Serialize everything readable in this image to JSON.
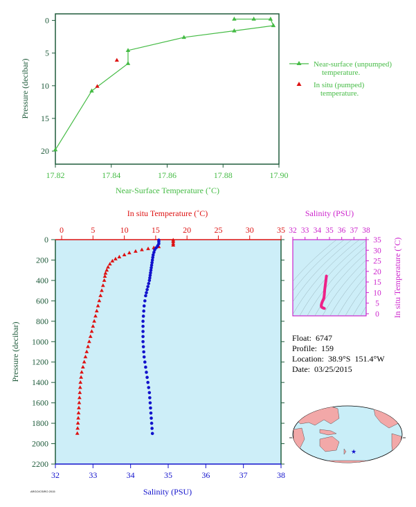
{
  "colors": {
    "green": "#44bb44",
    "red": "#dd1111",
    "blue": "#1111cc",
    "magenta": "#cc22cc",
    "pink": "#ee2288",
    "plot_bg": "#cdeef8",
    "dark_green": "#1e5a3a",
    "land": "#f2a8a8",
    "ocean": "#c9eef8"
  },
  "float_info": {
    "float_line": "Float:  6747",
    "profile_line": "Profile:  159",
    "location_line": "Location:  38.9°S  151.4°W",
    "date_line": "Date:  03/25/2015"
  },
  "credit": "ARGO/CSIRO 2015",
  "map": {
    "marker_icon": "star-icon"
  },
  "chart_data": [
    {
      "id": "near-surface",
      "type": "line",
      "xlabel": "Near-Surface Temperature (˚C)",
      "ylabel": "Pressure (decibar)",
      "xlim": [
        17.82,
        17.9
      ],
      "ylim": [
        22,
        -1
      ],
      "xticks": [
        17.82,
        17.84,
        17.86,
        17.88,
        17.9
      ],
      "xtick_labels": [
        "17.82",
        "17.84",
        "17.86",
        "17.88",
        "17.90"
      ],
      "yticks": [
        0,
        5,
        10,
        15,
        20
      ],
      "ytick_labels": [
        "0",
        "5",
        "10",
        "15",
        "20"
      ],
      "legend": [
        "Near-surface (unpumped)\ntemperature.",
        "In situ (pumped)\ntemperature."
      ],
      "legend_position": "right",
      "series": [
        {
          "name": "Near-surface (unpumped)\ntemperature.",
          "color": "#44bb44",
          "marker": "triangle",
          "points": [
            [
              17.884,
              -0.2
            ],
            [
              17.891,
              -0.2
            ],
            [
              17.897,
              -0.2
            ],
            [
              17.898,
              0.8
            ],
            [
              17.884,
              1.6
            ],
            [
              17.866,
              2.6
            ],
            [
              17.846,
              4.6
            ],
            [
              17.846,
              6.6
            ],
            [
              17.833,
              10.8
            ],
            [
              17.82,
              19.8
            ]
          ]
        },
        {
          "name": "In situ (pumped)\ntemperature.",
          "color": "#dd1111",
          "marker": "triangle",
          "points": [
            [
              17.842,
              6.1
            ],
            [
              17.835,
              10.1
            ]
          ]
        }
      ]
    },
    {
      "id": "profile",
      "type": "scatter",
      "top_xlabel": "In situ Temperature (˚C)",
      "bottom_xlabel": "Salinity (PSU)",
      "ylabel": "Pressure (decibar)",
      "temp_lim": [
        -1,
        35
      ],
      "temp_ticks": [
        0,
        5,
        10,
        15,
        20,
        25,
        30,
        35
      ],
      "temp_tick_labels": [
        "0",
        "5",
        "10",
        "15",
        "20",
        "25",
        "30",
        "35"
      ],
      "sal_lim": [
        32,
        38
      ],
      "sal_ticks": [
        32,
        33,
        34,
        35,
        36,
        37,
        38
      ],
      "sal_tick_labels": [
        "32",
        "33",
        "34",
        "35",
        "36",
        "37",
        "38"
      ],
      "ylim": [
        2200,
        0
      ],
      "yticks": [
        0,
        200,
        400,
        600,
        800,
        1000,
        1200,
        1400,
        1600,
        1800,
        2000,
        2200
      ],
      "ytick_labels": [
        "0",
        "200",
        "400",
        "600",
        "800",
        "1000",
        "1200",
        "1400",
        "1600",
        "1800",
        "2000",
        "2200"
      ],
      "temperature": {
        "color": "#dd1111",
        "marker": "triangle",
        "near_surface_line": [
          [
            14.8,
            0
          ],
          [
            17.8,
            0
          ],
          [
            17.8,
            60
          ]
        ],
        "points": [
          [
            17.8,
            5
          ],
          [
            17.8,
            20
          ],
          [
            17.8,
            40
          ],
          [
            17.8,
            55
          ],
          [
            15.5,
            70
          ],
          [
            14.7,
            80
          ],
          [
            13.8,
            90
          ],
          [
            12.8,
            100
          ],
          [
            11.8,
            115
          ],
          [
            10.8,
            130
          ],
          [
            10.0,
            150
          ],
          [
            9.2,
            170
          ],
          [
            8.6,
            190
          ],
          [
            8.1,
            210
          ],
          [
            7.7,
            240
          ],
          [
            7.4,
            270
          ],
          [
            7.2,
            300
          ],
          [
            7.0,
            330
          ],
          [
            6.9,
            360
          ],
          [
            6.8,
            400
          ],
          [
            6.6,
            450
          ],
          [
            6.4,
            500
          ],
          [
            6.2,
            550
          ],
          [
            6.0,
            600
          ],
          [
            5.8,
            650
          ],
          [
            5.6,
            700
          ],
          [
            5.4,
            750
          ],
          [
            5.2,
            800
          ],
          [
            5.0,
            850
          ],
          [
            4.8,
            900
          ],
          [
            4.6,
            950
          ],
          [
            4.4,
            1000
          ],
          [
            4.2,
            1050
          ],
          [
            4.0,
            1100
          ],
          [
            3.8,
            1150
          ],
          [
            3.6,
            1200
          ],
          [
            3.4,
            1250
          ],
          [
            3.2,
            1300
          ],
          [
            3.1,
            1350
          ],
          [
            3.0,
            1400
          ],
          [
            2.95,
            1450
          ],
          [
            2.9,
            1500
          ],
          [
            2.85,
            1550
          ],
          [
            2.8,
            1600
          ],
          [
            2.75,
            1650
          ],
          [
            2.7,
            1700
          ],
          [
            2.65,
            1750
          ],
          [
            2.6,
            1800
          ],
          [
            2.55,
            1850
          ],
          [
            2.5,
            1900
          ]
        ]
      },
      "salinity": {
        "color": "#1111cc",
        "marker": "dot",
        "points": [
          [
            34.75,
            5
          ],
          [
            34.75,
            20
          ],
          [
            34.75,
            40
          ],
          [
            34.72,
            60
          ],
          [
            34.68,
            80
          ],
          [
            34.64,
            100
          ],
          [
            34.62,
            125
          ],
          [
            34.6,
            150
          ],
          [
            34.59,
            175
          ],
          [
            34.58,
            200
          ],
          [
            34.57,
            225
          ],
          [
            34.56,
            250
          ],
          [
            34.55,
            275
          ],
          [
            34.54,
            300
          ],
          [
            34.53,
            325
          ],
          [
            34.52,
            350
          ],
          [
            34.51,
            375
          ],
          [
            34.5,
            400
          ],
          [
            34.48,
            430
          ],
          [
            34.46,
            460
          ],
          [
            34.44,
            490
          ],
          [
            34.42,
            520
          ],
          [
            34.4,
            550
          ],
          [
            34.38,
            600
          ],
          [
            34.36,
            650
          ],
          [
            34.35,
            700
          ],
          [
            34.34,
            750
          ],
          [
            34.33,
            800
          ],
          [
            34.33,
            850
          ],
          [
            34.33,
            900
          ],
          [
            34.33,
            950
          ],
          [
            34.33,
            1000
          ],
          [
            34.34,
            1050
          ],
          [
            34.35,
            1100
          ],
          [
            34.36,
            1150
          ],
          [
            34.38,
            1200
          ],
          [
            34.4,
            1250
          ],
          [
            34.42,
            1300
          ],
          [
            34.44,
            1350
          ],
          [
            34.46,
            1400
          ],
          [
            34.48,
            1450
          ],
          [
            34.5,
            1500
          ],
          [
            34.51,
            1550
          ],
          [
            34.52,
            1600
          ],
          [
            34.53,
            1650
          ],
          [
            34.54,
            1700
          ],
          [
            34.55,
            1750
          ],
          [
            34.56,
            1800
          ],
          [
            34.57,
            1850
          ],
          [
            34.58,
            1900
          ]
        ]
      }
    },
    {
      "id": "ts-diagram",
      "type": "scatter",
      "top_xlabel": "Salinity (PSU)",
      "ylabel": "In situ Temperature (˚C)",
      "xlim": [
        32,
        38
      ],
      "xticks": [
        32,
        33,
        34,
        35,
        36,
        37,
        38
      ],
      "xtick_labels": [
        "32",
        "33",
        "34",
        "35",
        "36",
        "37",
        "38"
      ],
      "ylim": [
        -1,
        35
      ],
      "yticks": [
        0,
        5,
        10,
        15,
        20,
        25,
        30,
        35
      ],
      "ytick_labels": [
        "0",
        "5",
        "10",
        "15",
        "20",
        "25",
        "30",
        "35"
      ],
      "contours": "density isopleths",
      "points_color": "#ee2288",
      "points": [
        [
          34.75,
          17.8
        ],
        [
          34.7,
          15.5
        ],
        [
          34.64,
          12.8
        ],
        [
          34.6,
          10.8
        ],
        [
          34.58,
          9.2
        ],
        [
          34.56,
          8.1
        ],
        [
          34.54,
          7.4
        ],
        [
          34.51,
          6.9
        ],
        [
          34.47,
          6.4
        ],
        [
          34.42,
          5.8
        ],
        [
          34.38,
          5.2
        ],
        [
          34.35,
          4.6
        ],
        [
          34.33,
          4.0
        ],
        [
          34.33,
          3.6
        ],
        [
          34.36,
          3.2
        ],
        [
          34.42,
          2.9
        ],
        [
          34.48,
          2.75
        ],
        [
          34.53,
          2.6
        ],
        [
          34.56,
          2.55
        ],
        [
          34.58,
          2.5
        ]
      ]
    }
  ]
}
